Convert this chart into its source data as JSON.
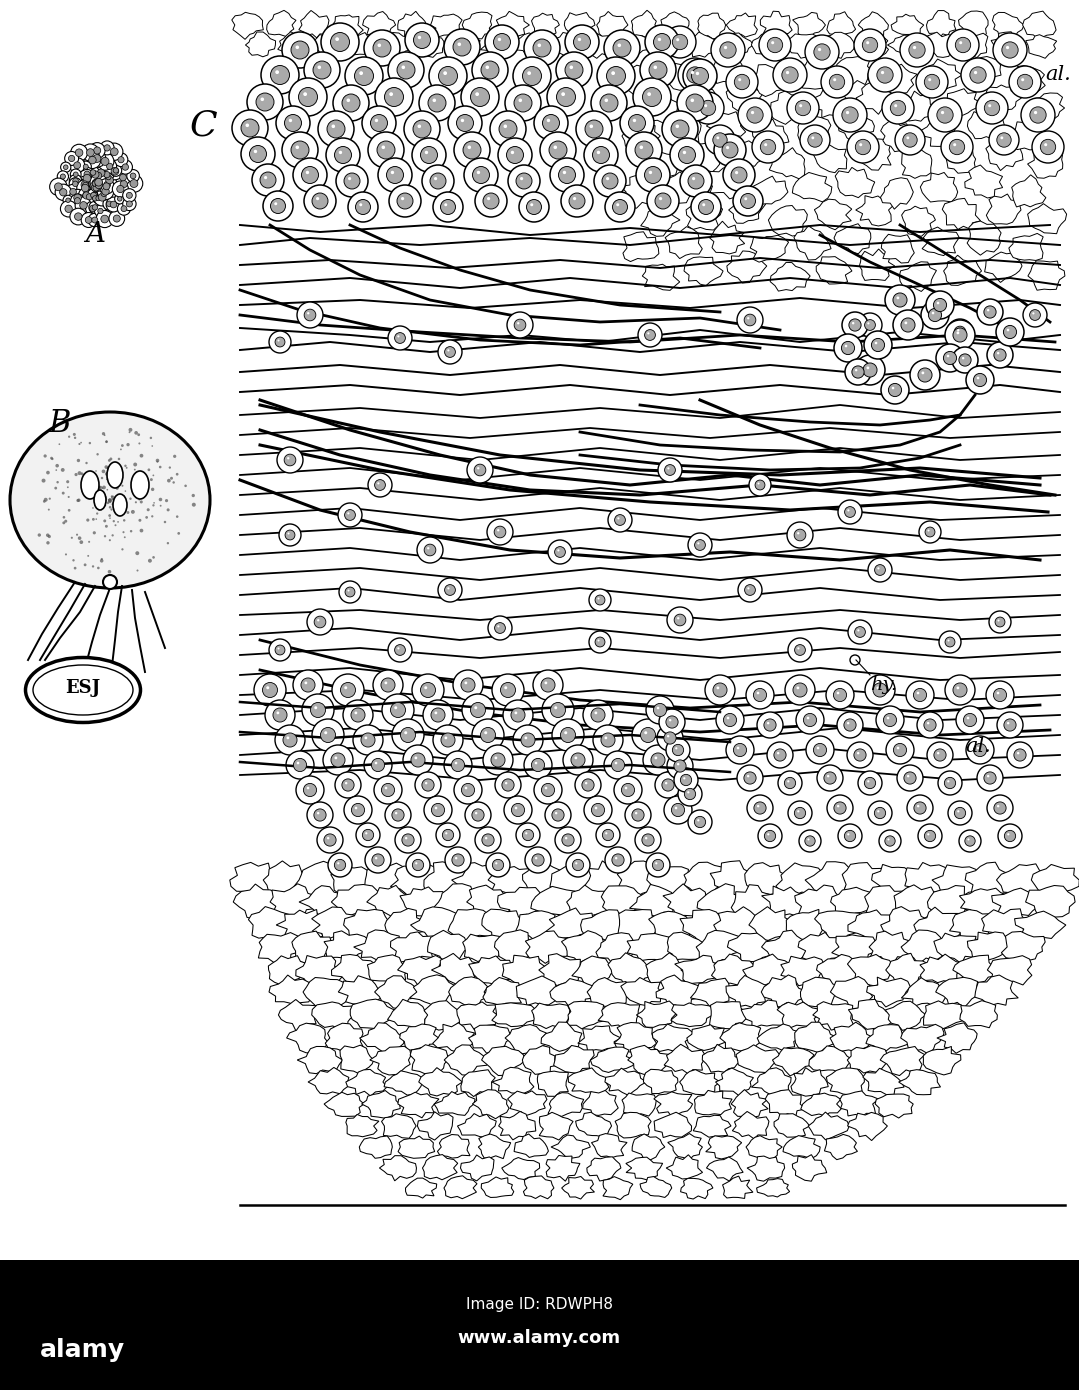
{
  "fig_width": 10.79,
  "fig_height": 13.9,
  "dpi": 100,
  "bg_color": "#ffffff",
  "label_A": "A",
  "label_B": "B",
  "label_C": "C",
  "label_al1": "al.",
  "label_al2": "al.",
  "label_hy": "hy.",
  "label_esj": "ESJ",
  "watermark_bg": "#000000",
  "watermark_fg": "#ffffff"
}
